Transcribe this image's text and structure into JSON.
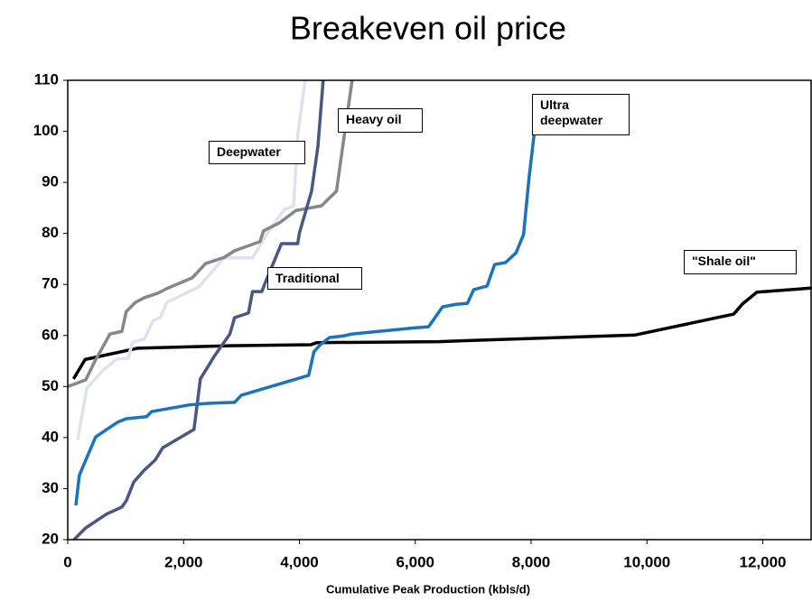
{
  "chart_data": {
    "type": "line",
    "title": "Breakeven oil price",
    "x_label": "Cumulative Peak Production (kbls/d)",
    "xlim": [
      0,
      12850
    ],
    "ylim": [
      20,
      110
    ],
    "xticks": [
      0,
      {
        "value": 2000,
        "label": "2,000"
      },
      {
        "value": 4000,
        "label": "4,000"
      },
      {
        "value": 6000,
        "label": "6,000"
      },
      {
        "value": 8000,
        "label": "8,000"
      },
      {
        "value": 10000,
        "label": "10,000"
      },
      {
        "value": 12000,
        "label": "12,000"
      }
    ],
    "yticks": [
      20,
      30,
      40,
      50,
      60,
      70,
      80,
      90,
      100,
      110
    ],
    "series": [
      {
        "name": "\"Shale oil\"",
        "color": "#000000",
        "x": [
          100,
          300,
          1200,
          2800,
          4200,
          4300,
          6400,
          9800,
          11500,
          11650,
          11900,
          12850
        ],
        "values": [
          51.5,
          55.3,
          57.5,
          58,
          58.2,
          58.6,
          58.8,
          60.1,
          64.2,
          66.2,
          68.5,
          69.3
        ]
      },
      {
        "name": "Deepwater",
        "color": "#dde2ec",
        "x": [
          170,
          330,
          620,
          850,
          1040,
          1120,
          1320,
          1480,
          1600,
          1710,
          2260,
          2700,
          3190,
          3500,
          3740,
          3900,
          3970,
          4100
        ],
        "values": [
          39.5,
          49.7,
          53.3,
          55.4,
          55.5,
          58.7,
          59.3,
          63,
          63.5,
          66.5,
          69.5,
          75.2,
          75.2,
          81,
          84.7,
          85.4,
          99.2,
          110
        ]
      },
      {
        "name": "Heavy oil",
        "color": "#878787",
        "x": [
          0,
          310,
          470,
          730,
          935,
          1010,
          1170,
          1320,
          1560,
          1710,
          2150,
          2380,
          2700,
          2880,
          3320,
          3380,
          3660,
          3940,
          4380,
          4640,
          4720,
          4910
        ],
        "values": [
          50,
          51.3,
          55,
          60.3,
          60.8,
          64.7,
          66.5,
          67.4,
          68.3,
          69.2,
          71.3,
          74.1,
          75.3,
          76.6,
          78.4,
          80.5,
          82.1,
          84.5,
          85.4,
          88.3,
          94.8,
          110
        ]
      },
      {
        "name": "Traditional",
        "color": "#4a5785",
        "x": [
          109,
          310,
          670,
          935,
          1010,
          1140,
          1320,
          1510,
          1640,
          2180,
          2290,
          2540,
          2800,
          2880,
          3120,
          3190,
          3350,
          3430,
          3690,
          3970,
          4000,
          4210,
          4320,
          4410
        ],
        "values": [
          20,
          22.3,
          25,
          26.4,
          27.6,
          31.3,
          33.6,
          35.6,
          38,
          41.6,
          51.5,
          56.1,
          60.3,
          63.5,
          64.4,
          68.6,
          68.6,
          70.9,
          78,
          78,
          80.1,
          88.3,
          97.1,
          110
        ]
      },
      {
        "name": "Ultra deepwater",
        "color": "#1a74bb",
        "x": [
          140,
          200,
          480,
          700,
          860,
          1010,
          1360,
          1450,
          2100,
          2410,
          2880,
          3000,
          4160,
          4250,
          4360,
          4520,
          4750,
          4910,
          6000,
          6230,
          6470,
          6700,
          6900,
          7010,
          7240,
          7370,
          7560,
          7740,
          7870,
          7960,
          8050,
          8100
        ],
        "values": [
          26.7,
          32.6,
          40.1,
          41.8,
          43,
          43.7,
          44.1,
          45.1,
          46.4,
          46.7,
          46.9,
          48.3,
          52.2,
          56.8,
          58.2,
          59.6,
          59.9,
          60.3,
          61.5,
          61.7,
          65.6,
          66.1,
          66.3,
          69,
          69.7,
          73.9,
          74.3,
          76.2,
          79.8,
          90.4,
          99.2,
          101
        ]
      }
    ]
  }
}
